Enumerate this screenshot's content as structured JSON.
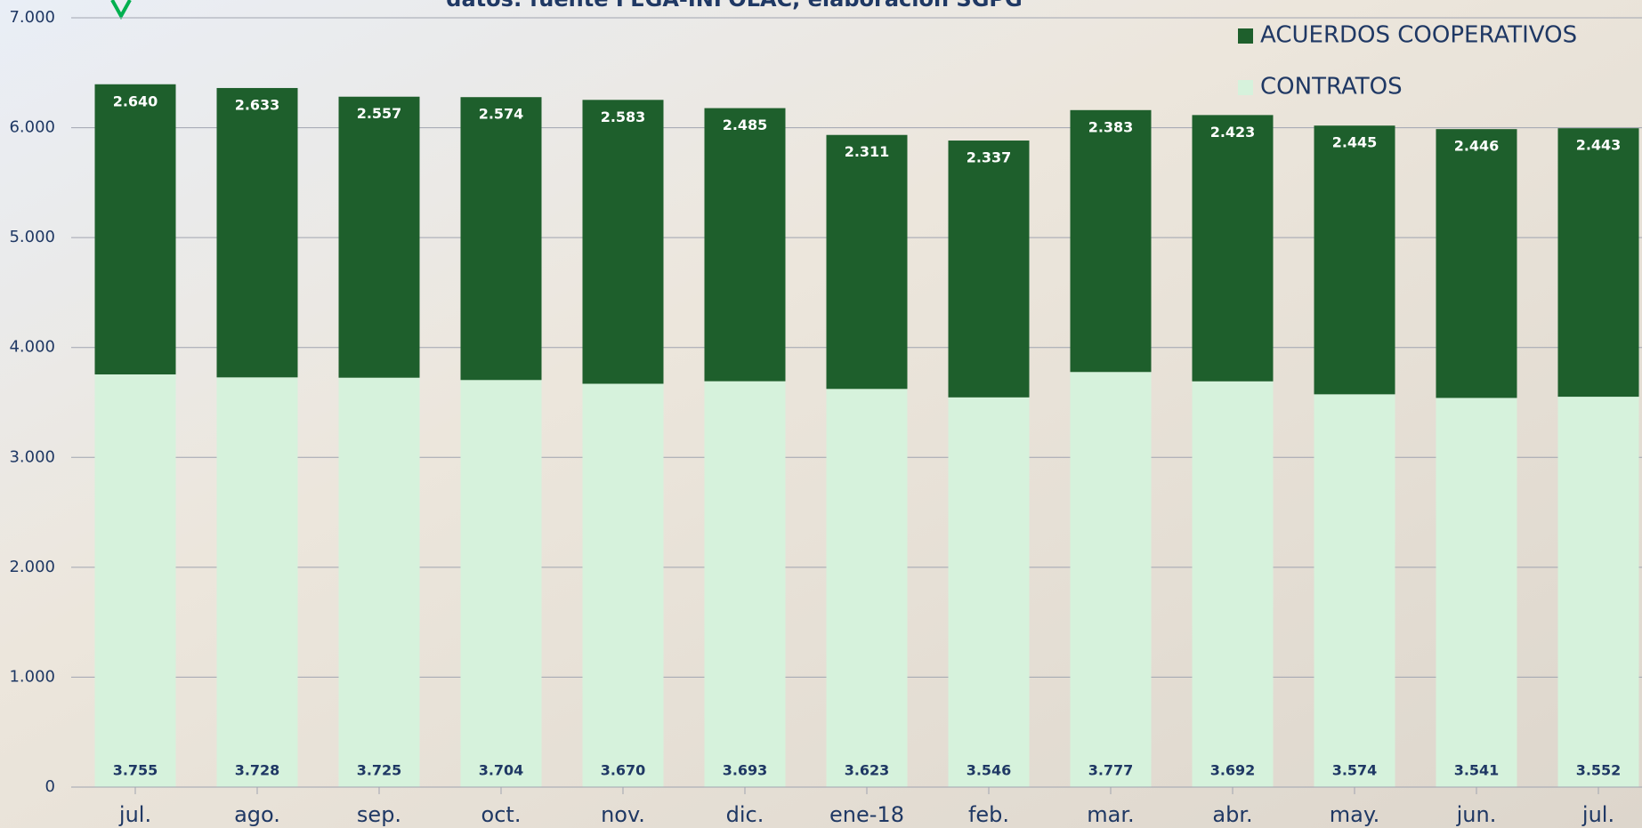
{
  "chart_data": {
    "type": "stacked-bar",
    "subtitle": "datos: fuente FEGA-INFOLAC, elaboración SGPG",
    "categories": [
      "jul.",
      "ago.",
      "sep.",
      "oct.",
      "nov.",
      "dic.",
      "ene-18",
      "feb.",
      "mar.",
      "abr.",
      "may.",
      "jun.",
      "jul."
    ],
    "series": [
      {
        "name": "CONTRATOS",
        "color": "#d6f2dc",
        "values": [
          3755,
          3728,
          3725,
          3704,
          3670,
          3693,
          3623,
          3546,
          3777,
          3692,
          3574,
          3541,
          3552
        ],
        "value_labels": [
          "3.755",
          "3.728",
          "3.725",
          "3.704",
          "3.670",
          "3.693",
          "3.623",
          "3.546",
          "3.777",
          "3.692",
          "3.574",
          "3.541",
          "3.552"
        ]
      },
      {
        "name": "ACUERDOS COOPERATIVOS",
        "color": "#1e5f2c",
        "values": [
          2640,
          2633,
          2557,
          2574,
          2583,
          2485,
          2311,
          2337,
          2383,
          2423,
          2445,
          2446,
          2443
        ],
        "value_labels": [
          "2.640",
          "2.633",
          "2.557",
          "2.574",
          "2.583",
          "2.485",
          "2.311",
          "2.337",
          "2.383",
          "2.423",
          "2.445",
          "2.446",
          "2.443"
        ]
      }
    ],
    "ylim": [
      0,
      7000
    ],
    "yticks": [
      0,
      {
        "value": 1000,
        "label": "1.000"
      },
      {
        "value": 2000,
        "label": "2.000"
      },
      {
        "value": 3000,
        "label": "3.000"
      },
      {
        "value": 4000,
        "label": "4.000"
      },
      {
        "value": 5000,
        "label": "5.000"
      },
      {
        "value": 6000,
        "label": "6.000"
      },
      {
        "value": 7000,
        "label": "7.000"
      }
    ],
    "grid": true,
    "legend": "top-right"
  }
}
